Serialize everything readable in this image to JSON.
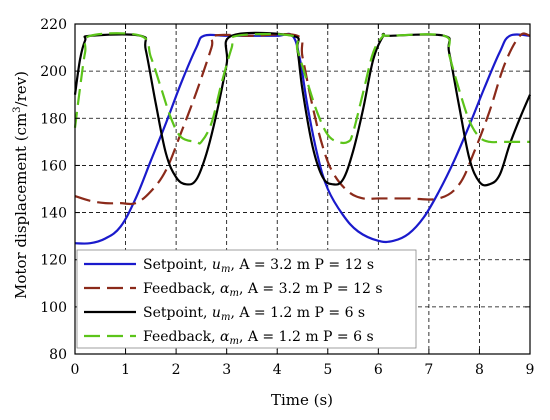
{
  "chart_data": {
    "type": "line",
    "xlabel": "Time (s)",
    "ylabel": "Motor displacement (cm³/rev)",
    "xlim": [
      0,
      9
    ],
    "ylim": [
      80,
      220
    ],
    "xticks": [
      "0",
      "1",
      "2",
      "3",
      "4",
      "5",
      "6",
      "7",
      "8",
      "9"
    ],
    "yticks": [
      "80",
      "100",
      "120",
      "140",
      "160",
      "180",
      "200",
      "220"
    ],
    "grid": true,
    "legend_position": "bottom-right",
    "series": [
      {
        "name": "Setpoint,  u_m,  A = 3.2 m P = 12 s",
        "color": "#1a1acc",
        "dash": "solid",
        "x": [
          0,
          0.3,
          0.6,
          0.9,
          1.2,
          1.5,
          1.8,
          2.1,
          2.4,
          2.55,
          3.0,
          3.5,
          4.0,
          4.3,
          4.45,
          4.6,
          4.8,
          5.0,
          5.3,
          5.6,
          6.0,
          6.3,
          6.6,
          6.9,
          7.2,
          7.5,
          7.8,
          8.1,
          8.4,
          8.6,
          9.0
        ],
        "y": [
          127,
          127,
          129,
          134,
          146,
          162,
          178,
          195,
          210,
          215,
          215,
          215,
          215,
          215,
          205,
          185,
          164,
          150,
          139,
          132,
          128,
          128,
          131,
          138,
          149,
          162,
          177,
          193,
          208,
          215,
          215
        ]
      },
      {
        "name": "Feedback,  α_m,  A = 3.2 m P = 12 s",
        "color": "#8b2a1a",
        "dash": "dashed",
        "x": [
          0,
          0.3,
          0.6,
          0.9,
          1.2,
          1.5,
          1.8,
          2.1,
          2.4,
          2.7,
          2.75,
          3.5,
          4.4,
          4.5,
          4.7,
          4.9,
          5.1,
          5.4,
          5.7,
          6.0,
          6.6,
          7.2,
          7.6,
          7.9,
          8.2,
          8.5,
          8.8,
          9.0
        ],
        "y": [
          147,
          145,
          144,
          144,
          144,
          149,
          158,
          174,
          191,
          210,
          215,
          215,
          215,
          206,
          185,
          168,
          157,
          149,
          146,
          146,
          146,
          146,
          152,
          166,
          183,
          203,
          215,
          215
        ]
      },
      {
        "name": "Setpoint,  u_m,  A = 1.2 m P = 6 s",
        "color": "#000000",
        "dash": "solid",
        "x": [
          0,
          0.1,
          0.2,
          0.3,
          1.3,
          1.4,
          1.6,
          1.8,
          2.0,
          2.2,
          2.4,
          2.6,
          2.8,
          3.0,
          3.1,
          4.3,
          4.4,
          4.5,
          4.7,
          4.9,
          5.1,
          5.3,
          5.5,
          5.7,
          5.9,
          6.1,
          6.2,
          7.3,
          7.4,
          7.6,
          7.8,
          8.0,
          8.2,
          8.4,
          8.6,
          8.8,
          9.0
        ],
        "y": [
          190,
          205,
          213,
          215,
          215,
          209,
          186,
          165,
          155,
          152,
          154,
          165,
          182,
          203,
          215,
          215,
          209,
          192,
          168,
          155,
          152,
          154,
          166,
          184,
          205,
          215,
          215,
          215,
          208,
          185,
          163,
          153,
          152,
          156,
          169,
          180,
          190
        ]
      },
      {
        "name": "Feedback,  α_m,  A = 1.2 m P = 6 s",
        "color": "#5cc41a",
        "dash": "dashed",
        "x": [
          0,
          0.1,
          0.2,
          0.3,
          1.3,
          1.5,
          1.7,
          1.9,
          2.1,
          2.4,
          2.5,
          2.7,
          2.9,
          3.1,
          3.2,
          4.3,
          4.4,
          4.6,
          4.8,
          5.0,
          5.2,
          5.4,
          5.5,
          5.7,
          5.9,
          6.1,
          6.2,
          7.3,
          7.4,
          7.6,
          7.8,
          8.0,
          8.2,
          8.4,
          8.6,
          9.0
        ],
        "y": [
          176,
          193,
          208,
          215,
          215,
          206,
          193,
          180,
          172,
          170,
          170,
          178,
          195,
          210,
          215,
          215,
          209,
          195,
          182,
          173,
          170,
          170,
          174,
          191,
          208,
          215,
          215,
          215,
          207,
          192,
          179,
          172,
          170,
          170,
          170,
          170
        ]
      }
    ]
  },
  "legend": {
    "entries": [
      {
        "label": "Setpoint,",
        "symbol": "u",
        "sub": "m",
        "params": ",  A = 3.2 m P = 12 s"
      },
      {
        "label": "Feedback,",
        "symbol": "α",
        "sub": "m",
        "params": ",  A = 3.2 m P = 12 s"
      },
      {
        "label": "Setpoint,",
        "symbol": "u",
        "sub": "m",
        "params": ",  A = 1.2 m P = 6 s"
      },
      {
        "label": "Feedback,",
        "symbol": "α",
        "sub": "m",
        "params": ",  A = 1.2 m P = 6 s"
      }
    ]
  },
  "ylabel_parts": {
    "main": "Motor displacement (cm",
    "sup": "3",
    "rest": "/rev)"
  }
}
